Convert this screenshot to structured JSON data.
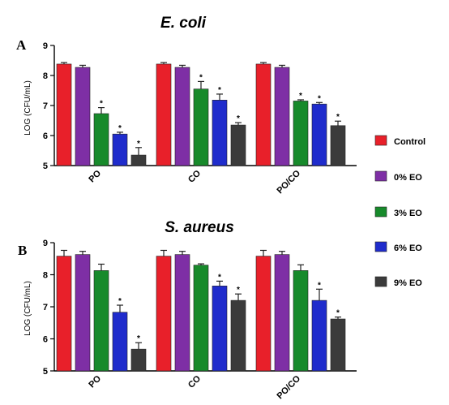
{
  "chart_data": [
    {
      "type": "bar",
      "panel_label": "A",
      "title": "E. coli",
      "ylabel": "LOG (CFU/mL)",
      "ylim": [
        5,
        9
      ],
      "yticks": [
        "5",
        "6",
        "7",
        "8",
        "9"
      ],
      "categories": [
        "PO",
        "CO",
        "PO/CO"
      ],
      "series": [
        {
          "name": "Control",
          "color": "#e8202a",
          "values": [
            8.38,
            8.38,
            8.38
          ],
          "errors": [
            0.05,
            0.05,
            0.05
          ],
          "marks": [
            "",
            "",
            ""
          ]
        },
        {
          "name": "0% EO",
          "color": "#7e2fa5",
          "values": [
            8.27,
            8.27,
            8.27
          ],
          "errors": [
            0.07,
            0.07,
            0.07
          ],
          "marks": [
            "",
            "",
            ""
          ]
        },
        {
          "name": "3% EO",
          "color": "#178a2b",
          "values": [
            6.73,
            7.55,
            7.15
          ],
          "errors": [
            0.2,
            0.25,
            0.04
          ],
          "marks": [
            "*",
            "*",
            "*"
          ]
        },
        {
          "name": "6% EO",
          "color": "#1f2ccc",
          "values": [
            6.05,
            7.18,
            7.05
          ],
          "errors": [
            0.06,
            0.2,
            0.05
          ],
          "marks": [
            "*",
            "*",
            "*"
          ]
        },
        {
          "name": "9% EO",
          "color": "#3b3b3b",
          "values": [
            5.35,
            6.35,
            6.33
          ],
          "errors": [
            0.25,
            0.08,
            0.15
          ],
          "marks": [
            "*",
            "*",
            "*"
          ]
        }
      ]
    },
    {
      "type": "bar",
      "panel_label": "B",
      "title": "S. aureus",
      "ylabel": "LOG (CFU/mL)",
      "ylim": [
        5,
        9
      ],
      "yticks": [
        "5",
        "6",
        "7",
        "8",
        "9"
      ],
      "categories": [
        "PO",
        "CO",
        "PO/CO"
      ],
      "series": [
        {
          "name": "Control",
          "color": "#e8202a",
          "values": [
            8.58,
            8.58,
            8.58
          ],
          "errors": [
            0.18,
            0.18,
            0.18
          ],
          "marks": [
            "",
            "",
            ""
          ]
        },
        {
          "name": "0% EO",
          "color": "#7e2fa5",
          "values": [
            8.63,
            8.63,
            8.63
          ],
          "errors": [
            0.1,
            0.1,
            0.1
          ],
          "marks": [
            "",
            "",
            ""
          ]
        },
        {
          "name": "3% EO",
          "color": "#178a2b",
          "values": [
            8.13,
            8.3,
            8.13
          ],
          "errors": [
            0.2,
            0.04,
            0.18
          ],
          "marks": [
            "",
            "",
            ""
          ]
        },
        {
          "name": "6% EO",
          "color": "#1f2ccc",
          "values": [
            6.83,
            7.65,
            7.2
          ],
          "errors": [
            0.22,
            0.15,
            0.35
          ],
          "marks": [
            "*",
            "*",
            "*"
          ]
        },
        {
          "name": "9% EO",
          "color": "#3b3b3b",
          "values": [
            5.68,
            7.2,
            6.62
          ],
          "errors": [
            0.2,
            0.2,
            0.06
          ],
          "marks": [
            "*",
            "*",
            "*"
          ]
        }
      ]
    }
  ],
  "legend": {
    "placement": "right",
    "items": [
      {
        "label": "Control",
        "color": "#e8202a"
      },
      {
        "label": "0% EO",
        "color": "#7e2fa5"
      },
      {
        "label": "3% EO",
        "color": "#178a2b"
      },
      {
        "label": "6% EO",
        "color": "#1f2ccc"
      },
      {
        "label": "9% EO",
        "color": "#3b3b3b"
      }
    ]
  }
}
